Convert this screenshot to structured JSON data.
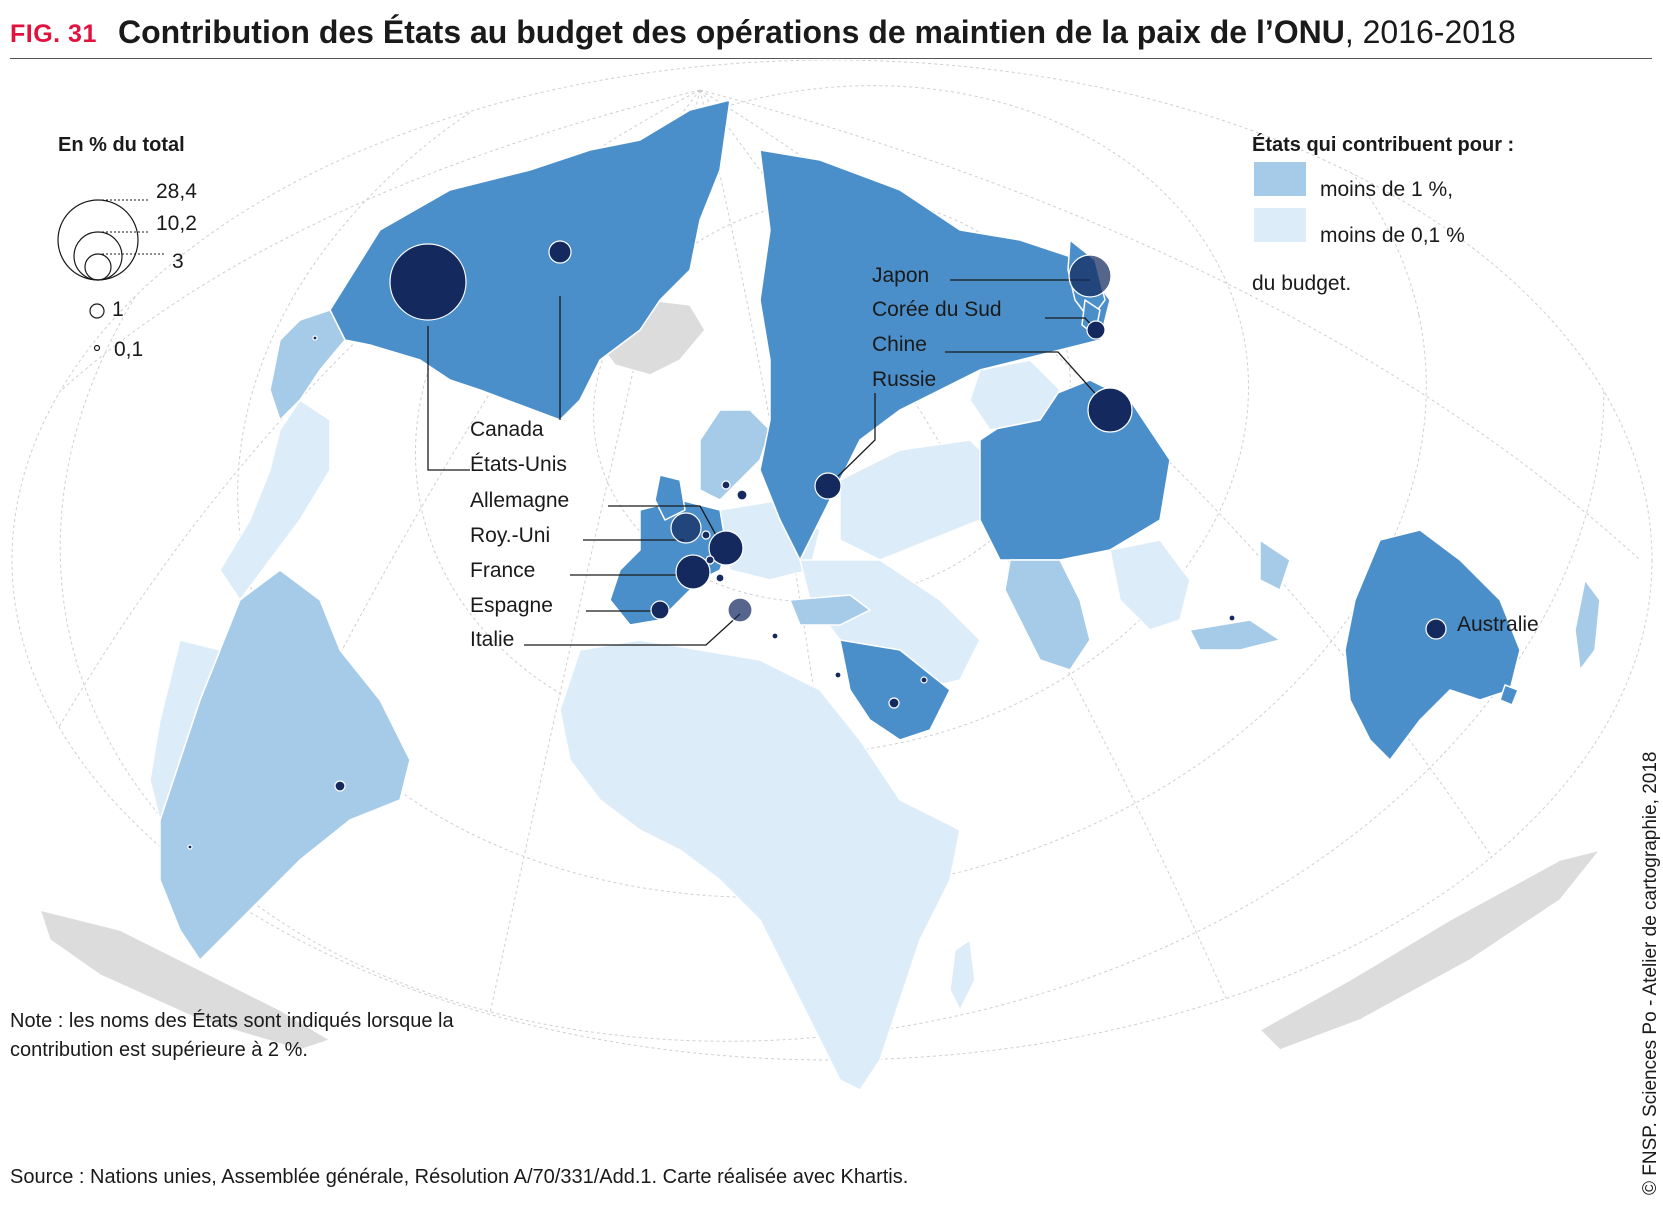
{
  "header": {
    "fig_label": "FIG. 31",
    "title": "Contribution des États au budget des opérations de maintien de la paix de l’ONU",
    "years": ", 2016-2018"
  },
  "legend_size": {
    "title": "En % du total",
    "values": [
      "28,4",
      "10,2",
      "3",
      "1",
      "0,1"
    ]
  },
  "legend_color": {
    "title": "États qui contribuent pour :",
    "less_1": "moins de 1 %,",
    "less_01": "moins de 0,1 %",
    "suffix": "du budget.",
    "colors": {
      "major": "#4a8fca",
      "less_1": "#a6cbe8",
      "less_01": "#dcedf9",
      "no_data": "#dcdcdc",
      "circle": "#14295e"
    }
  },
  "labels": {
    "canada": "Canada",
    "usa": "États-Unis",
    "germany": "Allemagne",
    "uk": "Roy.-Uni",
    "france": "France",
    "spain": "Espagne",
    "italy": "Italie",
    "japan": "Japon",
    "korea": "Corée du Sud",
    "china": "Chine",
    "russia": "Russie",
    "australia": "Australie"
  },
  "note": "Note : les noms des États sont indiqués lorsque la contribution est supérieure à 2 %.",
  "source": "Source : Nations unies, Assemblée générale, Résolution A/70/331/Add.1. Carte réalisée avec Khartis.",
  "credit": "© FNSP. Sciences Po - Atelier de cartographie, 2018"
}
